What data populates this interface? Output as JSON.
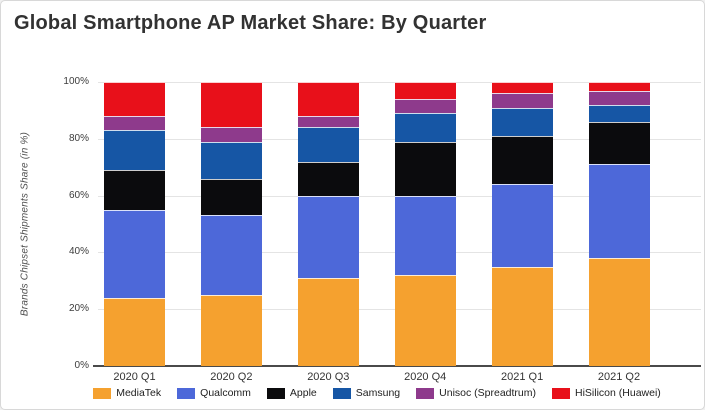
{
  "chart_data": {
    "type": "bar",
    "stacked": true,
    "title": "Global Smartphone AP Market Share: By Quarter",
    "ylabel": "Brands Chipset Shipments Share (in %)",
    "xlabel": "",
    "ylim": [
      0,
      100
    ],
    "yticks": [
      "0%",
      "20%",
      "40%",
      "60%",
      "80%",
      "100%"
    ],
    "grid": true,
    "legend_position": "bottom",
    "categories": [
      "2020 Q1",
      "2020 Q2",
      "2020 Q3",
      "2020 Q4",
      "2021 Q1",
      "2021 Q2"
    ],
    "series": [
      {
        "name": "MediaTek",
        "color": "#F5A12F",
        "values": [
          24,
          25,
          31,
          32,
          35,
          38
        ]
      },
      {
        "name": "Qualcomm",
        "color": "#4D68D9",
        "values": [
          31,
          28,
          29,
          28,
          29,
          33
        ]
      },
      {
        "name": "Apple",
        "color": "#0B0B0D",
        "values": [
          14,
          13,
          12,
          19,
          17,
          15
        ]
      },
      {
        "name": "Samsung",
        "color": "#1656A5",
        "values": [
          14,
          13,
          12,
          10,
          10,
          6
        ]
      },
      {
        "name": "Unisoc (Spreadtrum)",
        "color": "#8E3A8C",
        "values": [
          5,
          5,
          4,
          5,
          5,
          5
        ]
      },
      {
        "name": "HiSilicon (Huawei)",
        "color": "#E8101A",
        "values": [
          12,
          16,
          12,
          6,
          4,
          3
        ]
      }
    ]
  },
  "colors": {
    "background": "#ffffff",
    "card_border": "#d8d8d8",
    "title_text": "#323232",
    "gridline": "#e4e4e4",
    "axis_line": "#4a4a4a"
  }
}
